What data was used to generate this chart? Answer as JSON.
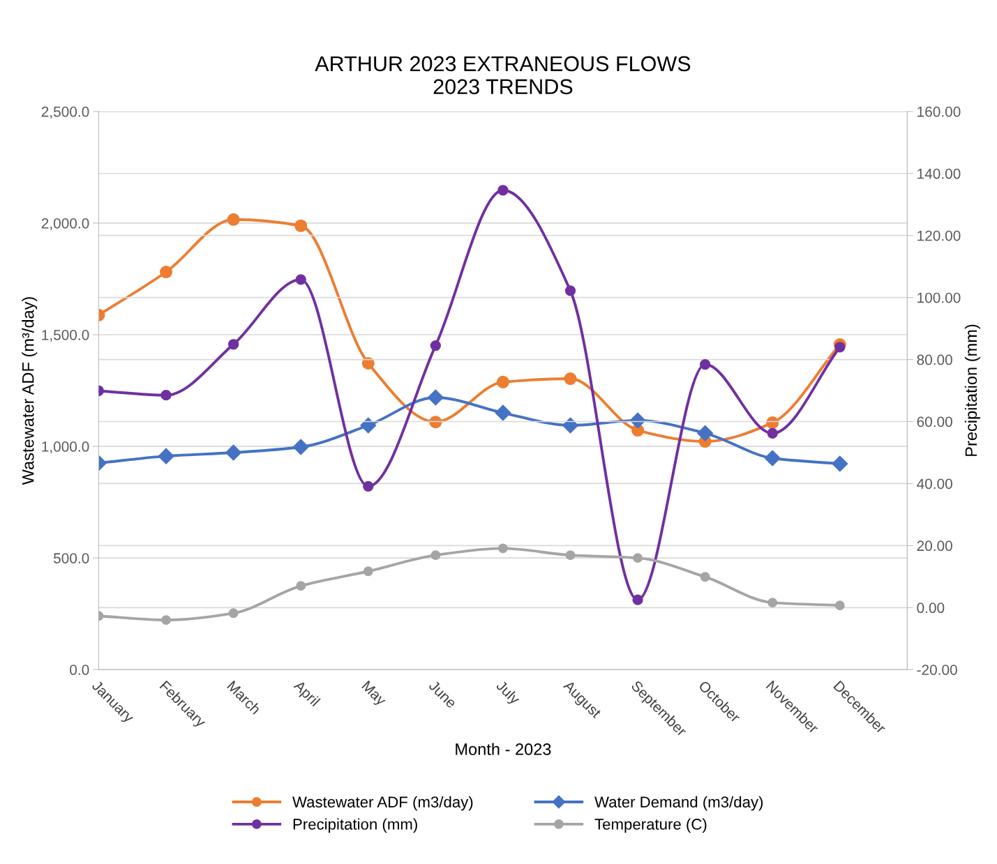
{
  "chart_data": {
    "type": "line",
    "title": "ARTHUR 2023 EXTRANEOUS FLOWS\n2023 TRENDS",
    "xlabel": "Month - 2023",
    "ylabel": "Wastewater ADF (m³/day)",
    "y2label": "Precipitation (mm)",
    "categories": [
      "January",
      "February",
      "March",
      "April",
      "May",
      "June",
      "July",
      "August",
      "September",
      "October",
      "November",
      "December"
    ],
    "series": [
      {
        "name": "Wastewater ADF (m3/day)",
        "color": "#ed7d31",
        "marker": "circle",
        "values": [
          1588,
          1781,
          2016,
          1988,
          1372,
          1109,
          1288,
          1303,
          1072,
          1022,
          1106,
          1456
        ]
      },
      {
        "name": "Water Demand (m3/day)",
        "color": "#4472c4",
        "marker": "diamond",
        "values": [
          925,
          956,
          972,
          997,
          1094,
          1219,
          1150,
          1094,
          1116,
          1059,
          947,
          922
        ]
      },
      {
        "name": "Precipitation (mm)",
        "color": "#7030a0",
        "marker": "circle",
        "axis": "y2",
        "values": [
          69.9,
          68.5,
          84.9,
          105.8,
          39.1,
          84.5,
          134.6,
          102.2,
          2.5,
          78.4,
          56.2,
          84.0
        ]
      },
      {
        "name": "Temperature (C)",
        "color": "#a5a5a5",
        "marker": "circle",
        "axis": "y2",
        "values": [
          -2.7,
          -4.0,
          -1.8,
          7.0,
          11.7,
          16.9,
          19.1,
          16.9,
          16.0,
          9.9,
          1.6,
          0.7
        ]
      }
    ],
    "ylim": [
      0,
      2500
    ],
    "yticks": [
      {
        "value": 0,
        "label": "0.0"
      },
      {
        "value": 500,
        "label": "500.0"
      },
      {
        "value": 1000,
        "label": "1,000.0"
      },
      {
        "value": 1500,
        "label": "1,500.0"
      },
      {
        "value": 2000,
        "label": "2,000.0"
      },
      {
        "value": 2500,
        "label": "2,500.0"
      }
    ],
    "y2lim": [
      -20,
      160
    ],
    "y2ticks": [
      {
        "value": -20,
        "label": "-20.00"
      },
      {
        "value": 0,
        "label": "0.00"
      },
      {
        "value": 20,
        "label": "20.00"
      },
      {
        "value": 40,
        "label": "40.00"
      },
      {
        "value": 60,
        "label": "60.00"
      },
      {
        "value": 80,
        "label": "80.00"
      },
      {
        "value": 100,
        "label": "100.00"
      },
      {
        "value": 120,
        "label": "120.00"
      },
      {
        "value": 140,
        "label": "140.00"
      },
      {
        "value": 160,
        "label": "160.00"
      }
    ],
    "grid": "y",
    "legend": "bottom",
    "line_style": "solid"
  }
}
